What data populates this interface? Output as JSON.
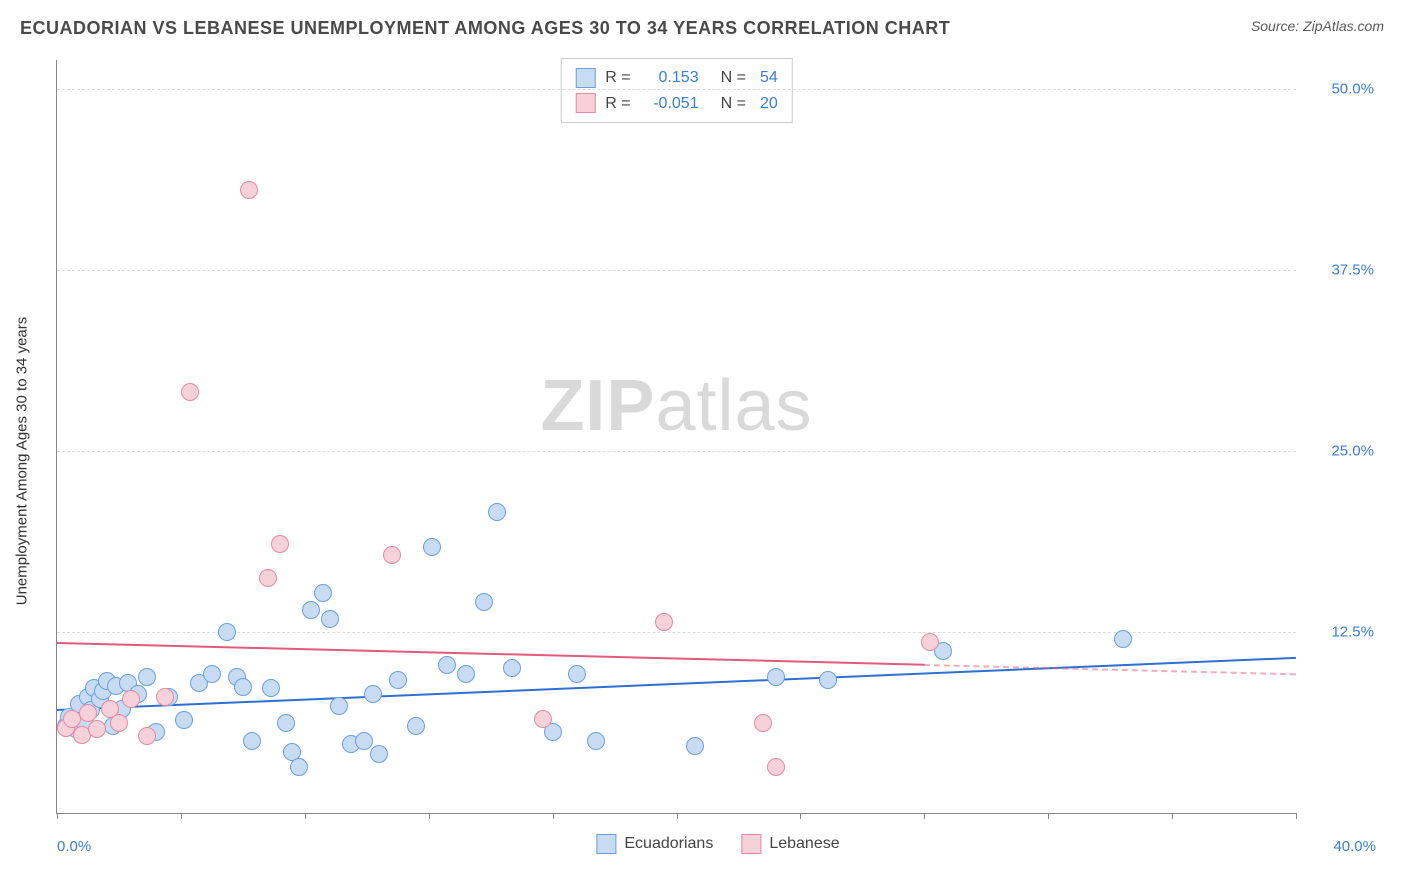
{
  "title": "ECUADORIAN VS LEBANESE UNEMPLOYMENT AMONG AGES 30 TO 34 YEARS CORRELATION CHART",
  "source": "Source: ZipAtlas.com",
  "watermark_bold": "ZIP",
  "watermark_rest": "atlas",
  "chart": {
    "type": "scatter",
    "y_label": "Unemployment Among Ages 30 to 34 years",
    "xlim": [
      0,
      40
    ],
    "ylim": [
      0,
      52
    ],
    "x_min_label": "0.0%",
    "x_max_label": "40.0%",
    "xtick_positions": [
      0,
      4,
      8,
      12,
      16,
      20,
      24,
      28,
      32,
      36,
      40
    ],
    "y_gridlines": [
      12.5,
      25.0,
      37.5,
      50.0
    ],
    "y_tick_labels": [
      "12.5%",
      "25.0%",
      "37.5%",
      "50.0%"
    ],
    "grid_color": "#dcdcdc",
    "background_color": "#ffffff",
    "marker_radius": 9,
    "marker_stroke_width": 1.5,
    "series": [
      {
        "name": "Ecuadorians",
        "fill": "#c7dbf3",
        "stroke": "#6ca0de",
        "r_value": "0.153",
        "n_value": "54",
        "trend": {
          "x1": 0,
          "y1": 7.2,
          "x2": 40,
          "y2": 10.8,
          "color": "#2f6fd0",
          "dash_after_x": 40
        },
        "points": [
          {
            "x": 0.3,
            "y": 6.0
          },
          {
            "x": 0.4,
            "y": 6.6
          },
          {
            "x": 0.6,
            "y": 5.8
          },
          {
            "x": 0.7,
            "y": 7.5
          },
          {
            "x": 0.9,
            "y": 6.2
          },
          {
            "x": 1.0,
            "y": 8.0
          },
          {
            "x": 1.1,
            "y": 7.1
          },
          {
            "x": 1.2,
            "y": 8.6
          },
          {
            "x": 1.4,
            "y": 7.9
          },
          {
            "x": 1.5,
            "y": 8.4
          },
          {
            "x": 1.6,
            "y": 9.1
          },
          {
            "x": 1.8,
            "y": 6.0
          },
          {
            "x": 1.9,
            "y": 8.8
          },
          {
            "x": 2.1,
            "y": 7.2
          },
          {
            "x": 2.3,
            "y": 9.0
          },
          {
            "x": 2.6,
            "y": 8.2
          },
          {
            "x": 2.9,
            "y": 9.4
          },
          {
            "x": 3.2,
            "y": 5.6
          },
          {
            "x": 3.6,
            "y": 8.0
          },
          {
            "x": 4.1,
            "y": 6.4
          },
          {
            "x": 4.6,
            "y": 9.0
          },
          {
            "x": 5.0,
            "y": 9.6
          },
          {
            "x": 5.5,
            "y": 12.5
          },
          {
            "x": 5.8,
            "y": 9.4
          },
          {
            "x": 6.3,
            "y": 5.0
          },
          {
            "x": 6.9,
            "y": 8.6
          },
          {
            "x": 7.4,
            "y": 6.2
          },
          {
            "x": 7.6,
            "y": 4.2
          },
          {
            "x": 7.8,
            "y": 3.2
          },
          {
            "x": 8.2,
            "y": 14.0
          },
          {
            "x": 8.6,
            "y": 15.2
          },
          {
            "x": 8.8,
            "y": 13.4
          },
          {
            "x": 9.1,
            "y": 7.4
          },
          {
            "x": 9.5,
            "y": 4.8
          },
          {
            "x": 9.9,
            "y": 5.0
          },
          {
            "x": 10.2,
            "y": 8.2
          },
          {
            "x": 10.4,
            "y": 4.1
          },
          {
            "x": 11.0,
            "y": 9.2
          },
          {
            "x": 11.6,
            "y": 6.0
          },
          {
            "x": 12.1,
            "y": 18.4
          },
          {
            "x": 12.6,
            "y": 10.2
          },
          {
            "x": 13.2,
            "y": 9.6
          },
          {
            "x": 13.8,
            "y": 14.6
          },
          {
            "x": 14.2,
            "y": 20.8
          },
          {
            "x": 14.7,
            "y": 10.0
          },
          {
            "x": 16.0,
            "y": 5.6
          },
          {
            "x": 16.8,
            "y": 9.6
          },
          {
            "x": 17.4,
            "y": 5.0
          },
          {
            "x": 20.6,
            "y": 4.6
          },
          {
            "x": 23.2,
            "y": 9.4
          },
          {
            "x": 24.9,
            "y": 9.2
          },
          {
            "x": 28.6,
            "y": 11.2
          },
          {
            "x": 34.4,
            "y": 12.0
          },
          {
            "x": 6.0,
            "y": 8.7
          }
        ]
      },
      {
        "name": "Lebanese",
        "fill": "#f6d1da",
        "stroke": "#e68aa3",
        "r_value": "-0.051",
        "n_value": "20",
        "trend": {
          "x1": 0,
          "y1": 11.8,
          "x2": 28,
          "y2": 10.3,
          "color": "#e05b7e",
          "dash_after_x": 28
        },
        "points": [
          {
            "x": 0.3,
            "y": 5.9
          },
          {
            "x": 0.5,
            "y": 6.5
          },
          {
            "x": 0.8,
            "y": 5.4
          },
          {
            "x": 1.0,
            "y": 6.9
          },
          {
            "x": 1.3,
            "y": 5.8
          },
          {
            "x": 1.7,
            "y": 7.2
          },
          {
            "x": 2.0,
            "y": 6.2
          },
          {
            "x": 2.4,
            "y": 7.9
          },
          {
            "x": 2.9,
            "y": 5.3
          },
          {
            "x": 3.5,
            "y": 8.0
          },
          {
            "x": 4.3,
            "y": 29.1
          },
          {
            "x": 6.2,
            "y": 43.0
          },
          {
            "x": 6.8,
            "y": 16.2
          },
          {
            "x": 7.2,
            "y": 18.6
          },
          {
            "x": 10.8,
            "y": 17.8
          },
          {
            "x": 15.7,
            "y": 6.5
          },
          {
            "x": 19.6,
            "y": 13.2
          },
          {
            "x": 22.8,
            "y": 6.2
          },
          {
            "x": 23.2,
            "y": 3.2
          },
          {
            "x": 28.2,
            "y": 11.8
          }
        ]
      }
    ],
    "legend": {
      "r_label": "R =",
      "n_label": "N ="
    },
    "bottom_legend": [
      "Ecuadorians",
      "Lebanese"
    ]
  }
}
